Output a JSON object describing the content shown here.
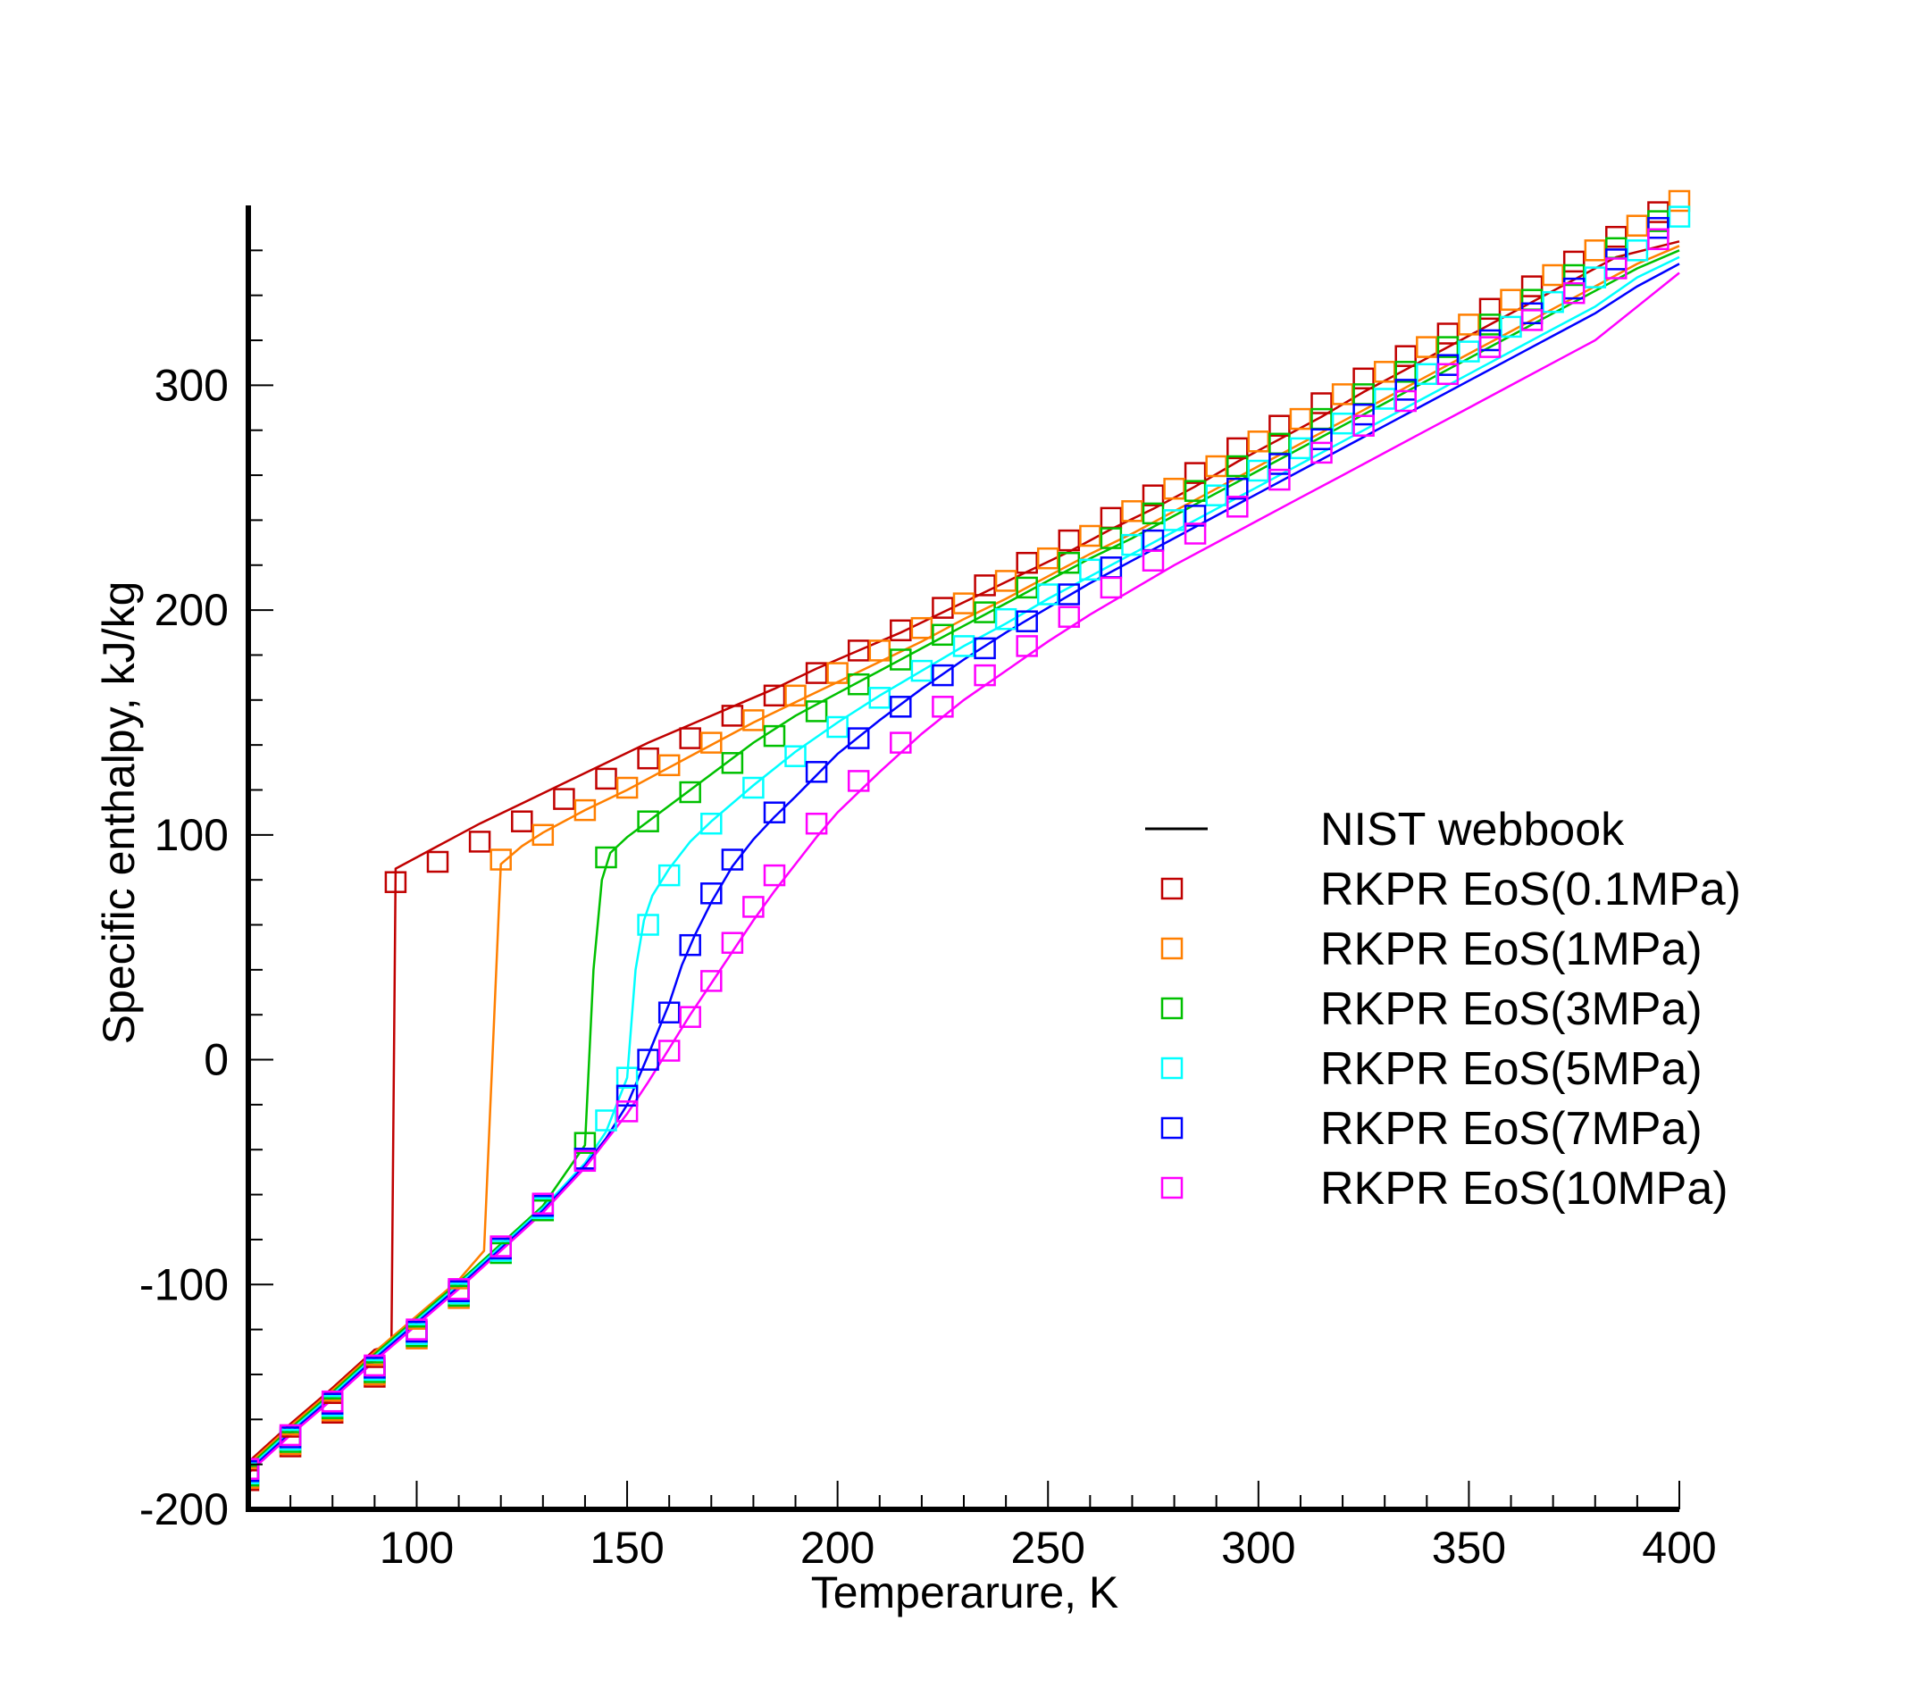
{
  "chart_data": {
    "type": "line",
    "xlabel": "Temperarure, K",
    "ylabel": "Specific enthalpy, kJ/kg",
    "xlim": [
      60,
      400
    ],
    "ylim": [
      -200,
      380
    ],
    "xticks": [
      100,
      150,
      200,
      250,
      300,
      350,
      400
    ],
    "xtick_labels": [
      "100",
      "150",
      "200",
      "250",
      "300",
      "350",
      "400"
    ],
    "yticks": [
      -200,
      -100,
      0,
      100,
      200,
      300
    ],
    "ytick_labels": [
      "-200",
      "-100",
      "0",
      "100",
      "200",
      "300"
    ],
    "grid": false,
    "legend_position": "right",
    "legend": [
      {
        "label": "NIST webbook",
        "style": "line",
        "color": "#000000"
      },
      {
        "label": "RKPR EoS(0.1MPa)",
        "style": "square",
        "color": "#c00000"
      },
      {
        "label": "RKPR EoS(1MPa)",
        "style": "square",
        "color": "#ff7f00"
      },
      {
        "label": "RKPR EoS(3MPa)",
        "style": "square",
        "color": "#00c000"
      },
      {
        "label": "RKPR EoS(5MPa)",
        "style": "square",
        "color": "#00ffff"
      },
      {
        "label": "RKPR EoS(7MPa)",
        "style": "square",
        "color": "#0000ff"
      },
      {
        "label": "RKPR EoS(10MPa)",
        "style": "square",
        "color": "#ff00ff"
      }
    ],
    "series": [
      {
        "name": "NIST webbook (0.1MPa)",
        "kind": "line",
        "color": "#c00000",
        "x": [
          60,
          70,
          80,
          90,
          94,
          95,
          105,
          115,
          125,
          135,
          145,
          155,
          165,
          175,
          185,
          195,
          205,
          215,
          225,
          235,
          245,
          255,
          265,
          275,
          285,
          295,
          305,
          315,
          325,
          335,
          345,
          355,
          365,
          375,
          385,
          400
        ],
        "y": [
          -179,
          -162,
          -146,
          -129,
          -127,
          85,
          95,
          105,
          114,
          123,
          132,
          141,
          149,
          157,
          165,
          174,
          182,
          190,
          199,
          208,
          217,
          226,
          236,
          245,
          255,
          266,
          276,
          286,
          297,
          307,
          317,
          327,
          337,
          347,
          357,
          364
        ]
      },
      {
        "name": "NIST webbook (1MPa)",
        "kind": "line",
        "color": "#ff7f00",
        "x": [
          60,
          70,
          80,
          90,
          100,
          110,
          116,
          120,
          125,
          130,
          140,
          150,
          160,
          170,
          180,
          190,
          200,
          210,
          220,
          230,
          240,
          250,
          260,
          270,
          280,
          290,
          300,
          310,
          320,
          330,
          340,
          350,
          360,
          370,
          380,
          390,
          400
        ],
        "y": [
          -180,
          -163,
          -147,
          -130,
          -114,
          -98,
          -85,
          87,
          95,
          101,
          111,
          120,
          130,
          140,
          150,
          159,
          168,
          177,
          186,
          196,
          205,
          215,
          225,
          234,
          244,
          254,
          264,
          274,
          284,
          294,
          304,
          314,
          324,
          334,
          344,
          354,
          362
        ]
      },
      {
        "name": "NIST webbook (3MPa)",
        "kind": "line",
        "color": "#00c000",
        "x": [
          60,
          70,
          80,
          90,
          100,
          110,
          120,
          130,
          140,
          142,
          144,
          146,
          150,
          155,
          160,
          170,
          180,
          190,
          200,
          210,
          220,
          230,
          240,
          250,
          260,
          270,
          280,
          290,
          300,
          310,
          320,
          330,
          340,
          350,
          360,
          370,
          380,
          390,
          400
        ],
        "y": [
          -181,
          -164,
          -148,
          -131,
          -115,
          -99,
          -82,
          -65,
          -38,
          40,
          80,
          92,
          99,
          106,
          113,
          127,
          141,
          153,
          163,
          173,
          183,
          193,
          203,
          213,
          223,
          232,
          242,
          252,
          262,
          272,
          282,
          292,
          302,
          312,
          322,
          332,
          342,
          352,
          360
        ]
      },
      {
        "name": "NIST webbook (5MPa)",
        "kind": "line",
        "color": "#00ffff",
        "x": [
          60,
          70,
          80,
          90,
          100,
          110,
          120,
          130,
          140,
          145,
          150,
          152,
          154,
          156,
          160,
          165,
          170,
          180,
          190,
          200,
          210,
          220,
          230,
          240,
          250,
          260,
          270,
          280,
          290,
          300,
          310,
          320,
          330,
          340,
          350,
          360,
          370,
          380,
          390,
          400
        ],
        "y": [
          -182,
          -165,
          -149,
          -132,
          -116,
          -100,
          -83,
          -66,
          -46,
          -32,
          -8,
          40,
          62,
          73,
          85,
          97,
          106,
          122,
          137,
          150,
          162,
          173,
          184,
          194,
          205,
          215,
          225,
          235,
          245,
          255,
          265,
          275,
          285,
          295,
          305,
          315,
          325,
          335,
          348,
          357
        ]
      },
      {
        "name": "NIST webbook (7MPa)",
        "kind": "line",
        "color": "#0000ff",
        "x": [
          60,
          70,
          80,
          90,
          100,
          110,
          120,
          130,
          140,
          145,
          150,
          155,
          160,
          163,
          166,
          170,
          175,
          180,
          185,
          190,
          200,
          210,
          220,
          230,
          240,
          250,
          260,
          270,
          280,
          290,
          300,
          310,
          320,
          330,
          340,
          350,
          360,
          370,
          380,
          390,
          400
        ],
        "y": [
          -183,
          -166,
          -150,
          -133,
          -117,
          -101,
          -84,
          -67,
          -47,
          -35,
          -20,
          2,
          25,
          42,
          55,
          70,
          86,
          98,
          108,
          117,
          136,
          151,
          165,
          178,
          190,
          201,
          212,
          222,
          232,
          242,
          252,
          262,
          272,
          282,
          292,
          302,
          312,
          322,
          332,
          344,
          354
        ]
      },
      {
        "name": "NIST webbook (10MPa)",
        "kind": "line",
        "color": "#ff00ff",
        "x": [
          60,
          70,
          80,
          90,
          100,
          110,
          120,
          130,
          140,
          150,
          155,
          160,
          165,
          170,
          175,
          180,
          185,
          190,
          195,
          200,
          210,
          220,
          230,
          240,
          250,
          260,
          270,
          280,
          290,
          300,
          310,
          320,
          330,
          340,
          350,
          360,
          370,
          380,
          390,
          400
        ],
        "y": [
          -184,
          -167,
          -151,
          -134,
          -118,
          -102,
          -85,
          -68,
          -48,
          -24,
          -10,
          5,
          20,
          34,
          48,
          62,
          75,
          87,
          99,
          110,
          128,
          145,
          160,
          173,
          186,
          198,
          209,
          220,
          230,
          240,
          250,
          260,
          270,
          280,
          290,
          300,
          310,
          320,
          335,
          350
        ]
      },
      {
        "name": "RKPR EoS(0.1MPa)",
        "kind": "markers",
        "color": "#c00000",
        "x": [
          60,
          70,
          80,
          90,
          95,
          105,
          115,
          125,
          135,
          145,
          155,
          165,
          175,
          185,
          195,
          205,
          215,
          225,
          235,
          245,
          255,
          265,
          275,
          285,
          295,
          305,
          315,
          325,
          335,
          345,
          355,
          365,
          375,
          385,
          395
        ],
        "y": [
          -187,
          -172,
          -157,
          -141,
          79,
          88,
          97,
          106,
          116,
          125,
          134,
          143,
          153,
          162,
          172,
          182,
          191,
          201,
          211,
          221,
          231,
          241,
          251,
          261,
          272,
          282,
          292,
          303,
          313,
          323,
          334,
          344,
          355,
          366,
          377
        ]
      },
      {
        "name": "RKPR EoS(1MPa)",
        "kind": "markers",
        "color": "#ff7f00",
        "x": [
          60,
          70,
          80,
          90,
          100,
          110,
          120,
          130,
          140,
          150,
          160,
          170,
          180,
          190,
          200,
          210,
          220,
          230,
          240,
          250,
          260,
          270,
          280,
          290,
          300,
          310,
          320,
          330,
          340,
          350,
          360,
          370,
          380,
          390,
          400
        ],
        "y": [
          -186,
          -171,
          -156,
          -140,
          -124,
          -106,
          89,
          100,
          111,
          121,
          131,
          141,
          151,
          162,
          172,
          182,
          192,
          203,
          213,
          223,
          233,
          244,
          254,
          264,
          275,
          285,
          296,
          306,
          317,
          327,
          338,
          349,
          360,
          371,
          382
        ]
      },
      {
        "name": "RKPR EoS(3MPa)",
        "kind": "markers",
        "color": "#00c000",
        "x": [
          60,
          70,
          80,
          90,
          100,
          110,
          120,
          130,
          140,
          145,
          155,
          165,
          175,
          185,
          195,
          205,
          215,
          225,
          235,
          245,
          255,
          265,
          275,
          285,
          295,
          305,
          315,
          325,
          335,
          345,
          355,
          365,
          375,
          385,
          395
        ],
        "y": [
          -185,
          -170,
          -155,
          -139,
          -123,
          -105,
          -86,
          -67,
          -37,
          90,
          106,
          119,
          132,
          144,
          155,
          167,
          178,
          189,
          199,
          210,
          221,
          232,
          243,
          253,
          264,
          274,
          285,
          296,
          306,
          317,
          327,
          338,
          349,
          361,
          373
        ]
      },
      {
        "name": "RKPR EoS(5MPa)",
        "kind": "markers",
        "color": "#00ffff",
        "x": [
          60,
          70,
          80,
          90,
          100,
          110,
          120,
          130,
          145,
          150,
          155,
          160,
          170,
          180,
          190,
          200,
          210,
          220,
          230,
          240,
          250,
          260,
          270,
          280,
          290,
          300,
          310,
          320,
          330,
          340,
          350,
          360,
          370,
          380,
          390,
          400
        ],
        "y": [
          -184,
          -169,
          -154,
          -138,
          -122,
          -104,
          -85,
          -66,
          -27,
          -8,
          60,
          82,
          105,
          121,
          135,
          148,
          161,
          173,
          184,
          196,
          207,
          218,
          229,
          240,
          251,
          262,
          272,
          283,
          294,
          305,
          315,
          326,
          337,
          348,
          360,
          375
        ]
      },
      {
        "name": "RKPR EoS(7MPa)",
        "kind": "markers",
        "color": "#0000ff",
        "x": [
          60,
          70,
          80,
          90,
          100,
          110,
          120,
          130,
          140,
          150,
          155,
          160,
          165,
          170,
          175,
          185,
          195,
          205,
          215,
          225,
          235,
          245,
          255,
          265,
          275,
          285,
          295,
          305,
          315,
          325,
          335,
          345,
          355,
          365,
          375,
          385,
          395
        ],
        "y": [
          -183,
          -168,
          -153,
          -137,
          -121,
          -103,
          -84,
          -65,
          -44,
          -16,
          0,
          21,
          51,
          74,
          89,
          110,
          128,
          143,
          157,
          171,
          183,
          195,
          207,
          219,
          231,
          242,
          254,
          265,
          276,
          287,
          298,
          309,
          320,
          332,
          343,
          356,
          370
        ]
      },
      {
        "name": "RKPR EoS(10MPa)",
        "kind": "markers",
        "color": "#ff00ff",
        "x": [
          60,
          70,
          80,
          90,
          100,
          110,
          120,
          130,
          140,
          150,
          160,
          165,
          170,
          175,
          180,
          185,
          195,
          205,
          215,
          225,
          235,
          245,
          255,
          265,
          275,
          285,
          295,
          305,
          315,
          325,
          335,
          345,
          355,
          365,
          375,
          385,
          395
        ],
        "y": [
          -182,
          -167,
          -152,
          -136,
          -120,
          -102,
          -83,
          -64,
          -45,
          -23,
          4,
          19,
          35,
          52,
          68,
          82,
          105,
          124,
          141,
          157,
          171,
          184,
          197,
          210,
          222,
          234,
          246,
          258,
          270,
          282,
          293,
          305,
          317,
          329,
          341,
          352,
          365
        ]
      }
    ]
  }
}
